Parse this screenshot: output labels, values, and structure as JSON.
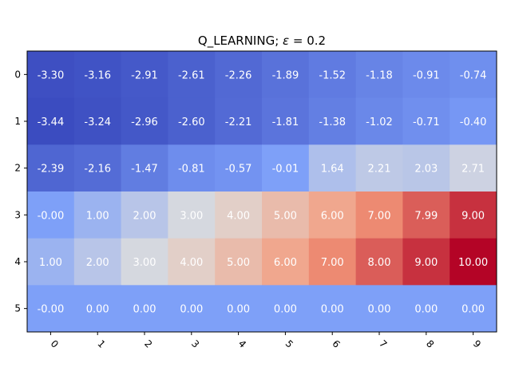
{
  "chart_data": {
    "type": "heatmap",
    "title_prefix": "Q_LEARNING; ",
    "title_symbol": "ε",
    "title_suffix": " = 0.2",
    "xlabel": "",
    "ylabel": "",
    "x_ticks": [
      "0",
      "1",
      "2",
      "3",
      "4",
      "5",
      "6",
      "7",
      "8",
      "9"
    ],
    "y_ticks": [
      "0",
      "1",
      "2",
      "3",
      "4",
      "5"
    ],
    "colormap": "coolwarm",
    "vmin": -3.44,
    "vmax": 10.0,
    "values": [
      [
        -3.3,
        -3.16,
        -2.91,
        -2.61,
        -2.26,
        -1.89,
        -1.52,
        -1.18,
        -0.91,
        -0.74
      ],
      [
        -3.44,
        -3.24,
        -2.96,
        -2.6,
        -2.21,
        -1.81,
        -1.38,
        -1.02,
        -0.71,
        -0.4
      ],
      [
        -2.39,
        -2.16,
        -1.47,
        -0.81,
        -0.57,
        -0.01,
        1.64,
        2.21,
        2.03,
        2.71
      ],
      [
        -0.0,
        1.0,
        2.0,
        3.0,
        4.0,
        5.0,
        6.0,
        7.0,
        7.99,
        9.0
      ],
      [
        1.0,
        2.0,
        3.0,
        4.0,
        5.0,
        6.0,
        7.0,
        8.0,
        9.0,
        10.0
      ],
      [
        -0.0,
        0.0,
        0.0,
        0.0,
        0.0,
        0.0,
        0.0,
        0.0,
        0.0,
        0.0
      ]
    ],
    "labels": [
      [
        "-3.30",
        "-3.16",
        "-2.91",
        "-2.61",
        "-2.26",
        "-1.89",
        "-1.52",
        "-1.18",
        "-0.91",
        "-0.74"
      ],
      [
        "-3.44",
        "-3.24",
        "-2.96",
        "-2.60",
        "-2.21",
        "-1.81",
        "-1.38",
        "-1.02",
        "-0.71",
        "-0.40"
      ],
      [
        "-2.39",
        "-2.16",
        "-1.47",
        "-0.81",
        "-0.57",
        "-0.01",
        "1.64",
        "2.21",
        "2.03",
        "2.71"
      ],
      [
        "-0.00",
        "1.00",
        "2.00",
        "3.00",
        "4.00",
        "5.00",
        "6.00",
        "7.00",
        "7.99",
        "9.00"
      ],
      [
        "1.00",
        "2.00",
        "3.00",
        "4.00",
        "5.00",
        "6.00",
        "7.00",
        "8.00",
        "9.00",
        "10.00"
      ],
      [
        "-0.00",
        "0.00",
        "0.00",
        "0.00",
        "0.00",
        "0.00",
        "0.00",
        "0.00",
        "0.00",
        "0.00"
      ]
    ]
  }
}
